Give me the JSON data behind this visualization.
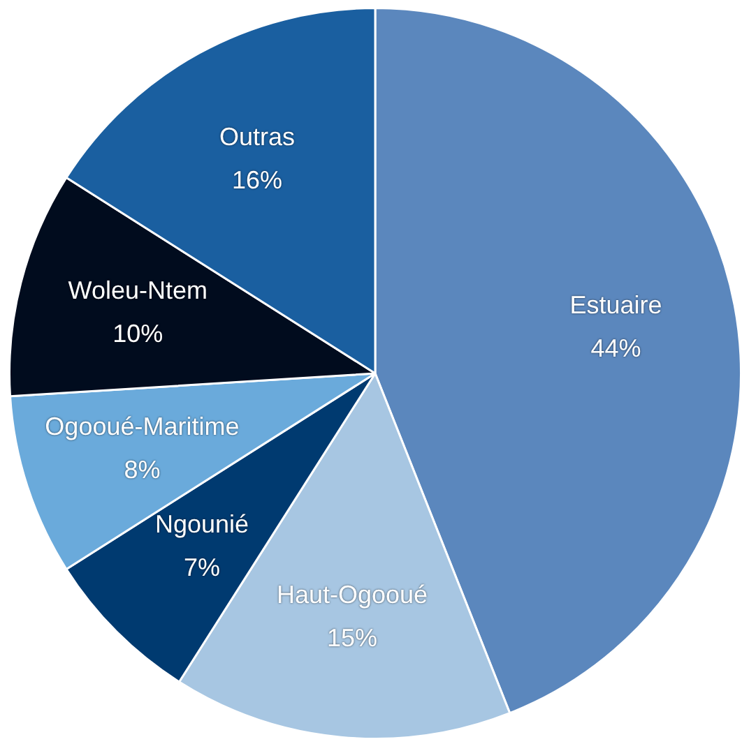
{
  "chart_data": {
    "type": "pie",
    "categories": [
      "Estuaire",
      "Haut-Ogooué",
      "Ngounié",
      "Ogooué-Maritime",
      "Woleu-Ntem",
      "Outras"
    ],
    "values": [
      44,
      15,
      7,
      8,
      10,
      16
    ],
    "colors": [
      "#5b87bd",
      "#a7c6e2",
      "#003a70",
      "#6aaadb",
      "#010c1e",
      "#1a5fa0"
    ],
    "value_labels": [
      "44%",
      "15%",
      "7%",
      "8%",
      "10%",
      "16%"
    ],
    "legend": false
  }
}
